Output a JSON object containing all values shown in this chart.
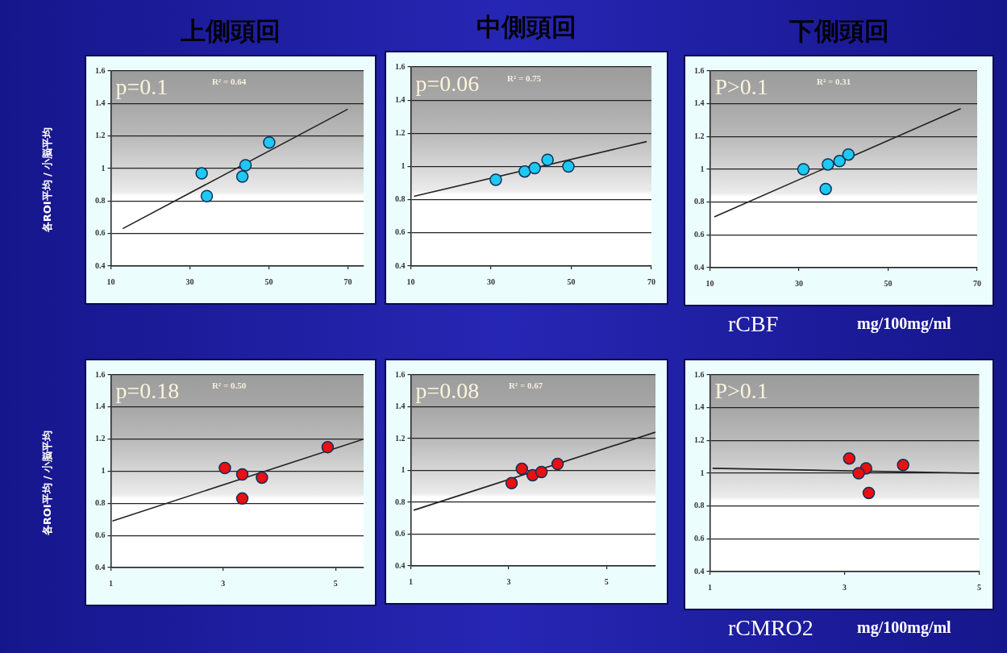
{
  "chart_data": [
    {
      "type": "scatter",
      "title": "上側頭回",
      "ylabel": "各ROI平均 / 小脳平均",
      "xlim": [
        10,
        74
      ],
      "xticks": [
        10,
        30,
        50,
        70
      ],
      "ylim": [
        0.4,
        1.6
      ],
      "yticks": [
        0.4,
        0.6,
        0.8,
        1,
        1.2,
        1.4,
        1.6
      ],
      "grid": "y",
      "marker": "circle",
      "annotations": [
        "p=0.1",
        "R² = 0.64"
      ],
      "series": [
        {
          "type": "scatter",
          "color": "#1ec8f0",
          "x": [
            33,
            34.3,
            44.1,
            43.3,
            50.1
          ],
          "values": [
            0.97,
            0.83,
            1.02,
            0.95,
            1.16
          ]
        },
        {
          "type": "line",
          "color": "#222222",
          "marker": "none",
          "x": [
            13,
            70
          ],
          "values": [
            0.63,
            1.365
          ]
        }
      ]
    },
    {
      "type": "scatter",
      "title": "中側頭回",
      "xlim": [
        10,
        70
      ],
      "xticks": [
        10,
        30,
        50,
        70
      ],
      "ylim": [
        0.4,
        1.6
      ],
      "yticks": [
        0.4,
        0.6,
        0.8,
        1,
        1.2,
        1.4,
        1.6
      ],
      "grid": "y",
      "marker": "circle",
      "annotations": [
        "p=0.06",
        "R² = 0.75"
      ],
      "series": [
        {
          "type": "scatter",
          "color": "#1ec8f0",
          "x": [
            31.2,
            38.4,
            40.9,
            44.1,
            49.3
          ],
          "values": [
            0.92,
            0.97,
            0.99,
            1.04,
            1.0
          ]
        },
        {
          "type": "line",
          "color": "#222222",
          "marker": "none",
          "x": [
            10.8,
            68.8
          ],
          "values": [
            0.82,
            1.15
          ]
        }
      ]
    },
    {
      "type": "scatter",
      "title": "下側頭回",
      "xlabel": "rCBF",
      "xlim": [
        10,
        70
      ],
      "xticks": [
        10,
        30,
        50,
        70
      ],
      "ylim": [
        0.4,
        1.6
      ],
      "yticks": [
        0.4,
        0.6,
        0.8,
        1,
        1.2,
        1.4,
        1.6
      ],
      "grid": "y",
      "marker": "circle",
      "annotations": [
        "P>0.1",
        "R² = 0.31",
        "mg/100mg/ml"
      ],
      "series": [
        {
          "type": "scatter",
          "color": "#1ec8f0",
          "x": [
            31,
            36,
            36.5,
            39.1,
            41.1
          ],
          "values": [
            1.0,
            0.88,
            1.03,
            1.05,
            1.09
          ]
        },
        {
          "type": "line",
          "color": "#222222",
          "marker": "none",
          "x": [
            11,
            66.3
          ],
          "values": [
            0.71,
            1.37
          ]
        }
      ]
    },
    {
      "type": "scatter",
      "ylabel": "各ROI平均 / 小脳平均",
      "xlim": [
        1,
        5.5
      ],
      "xticks": [
        1,
        3,
        5
      ],
      "ylim": [
        0.4,
        1.6
      ],
      "yticks": [
        0.4,
        0.6,
        0.8,
        1,
        1.2,
        1.4,
        1.6
      ],
      "grid": "y",
      "marker": "circle",
      "annotations": [
        "p=0.18",
        "R² = 0.50"
      ],
      "series": [
        {
          "type": "scatter",
          "color": "#e81010",
          "x": [
            3.03,
            3.34,
            3.69,
            3.34,
            4.86
          ],
          "values": [
            1.02,
            0.98,
            0.96,
            0.83,
            1.15
          ]
        },
        {
          "type": "line",
          "color": "#222222",
          "marker": "none",
          "x": [
            1.03,
            5.5
          ],
          "values": [
            0.69,
            1.2
          ]
        }
      ]
    },
    {
      "type": "scatter",
      "xlim": [
        1,
        6
      ],
      "xticks": [
        1,
        3,
        5
      ],
      "ylim": [
        0.4,
        1.6
      ],
      "yticks": [
        0.4,
        0.6,
        0.8,
        1,
        1.2,
        1.4,
        1.6
      ],
      "grid": "y",
      "marker": "circle",
      "annotations": [
        "p=0.08",
        "R² = 0.67"
      ],
      "series": [
        {
          "type": "scatter",
          "color": "#e81010",
          "x": [
            3.06,
            3.27,
            3.49,
            3.67,
            4.0
          ],
          "values": [
            0.92,
            1.01,
            0.97,
            0.99,
            1.04
          ]
        },
        {
          "type": "line",
          "color": "#222222",
          "marker": "none",
          "x": [
            1.06,
            6.0
          ],
          "values": [
            0.75,
            1.24
          ]
        }
      ]
    },
    {
      "type": "scatter",
      "xlabel": "rCMRO2",
      "xlim": [
        1,
        5
      ],
      "xticks": [
        1,
        3,
        5
      ],
      "ylim": [
        0.4,
        1.6
      ],
      "yticks": [
        0.4,
        0.6,
        0.8,
        1,
        1.2,
        1.4,
        1.6
      ],
      "grid": "y",
      "marker": "circle",
      "annotations": [
        "P>0.1",
        "mg/100mg/ml"
      ],
      "series": [
        {
          "type": "scatter",
          "color": "#e81010",
          "x": [
            3.07,
            3.32,
            3.21,
            3.36,
            3.87
          ],
          "values": [
            1.09,
            1.03,
            1.0,
            0.88,
            1.05
          ]
        },
        {
          "type": "line",
          "color": "#222222",
          "marker": "none",
          "x": [
            1.04,
            5.0
          ],
          "values": [
            1.03,
            1.0
          ]
        }
      ]
    }
  ]
}
